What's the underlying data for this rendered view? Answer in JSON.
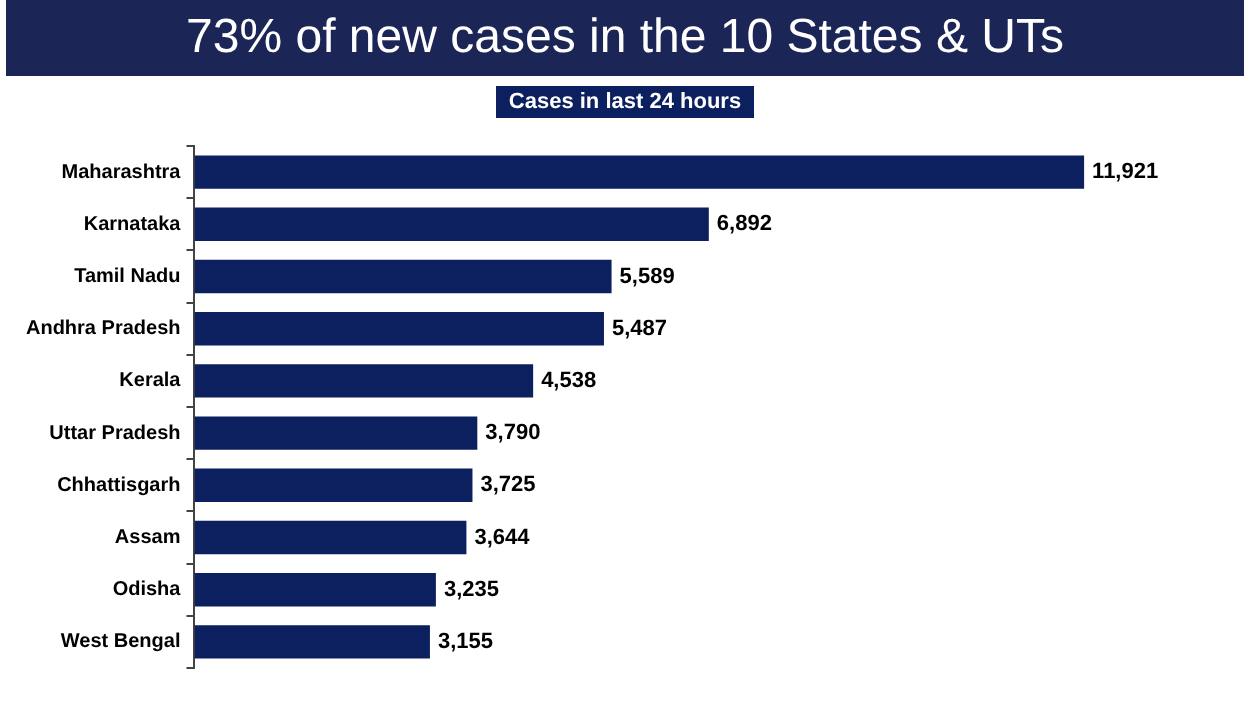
{
  "chart_data": {
    "type": "bar",
    "orientation": "horizontal",
    "title": "73% of new cases in the 10 States & UTs",
    "subtitle": "Cases in last 24 hours",
    "categories": [
      "Maharashtra",
      "Karnataka",
      "Tamil Nadu",
      "Andhra Pradesh",
      "Kerala",
      "Uttar Pradesh",
      "Chhattisgarh",
      "Assam",
      "Odisha",
      "West Bengal"
    ],
    "values": [
      11921,
      6892,
      5589,
      5487,
      4538,
      3790,
      3725,
      3644,
      3235,
      3155
    ],
    "value_labels": [
      "11,921",
      "6,892",
      "5,589",
      "5,487",
      "4,538",
      "3,790",
      "3,725",
      "3,644",
      "3,235",
      "3,155"
    ],
    "color": "#0c1f5e",
    "legend": false,
    "tick_labels": "y"
  }
}
